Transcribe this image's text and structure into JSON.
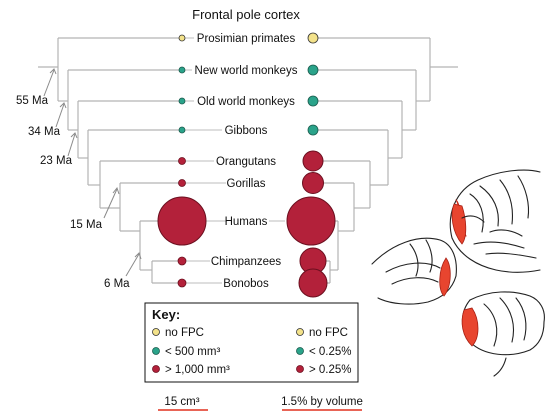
{
  "title": "Frontal pole cortex",
  "colors": {
    "fill": "#b3213a",
    "stroke": "#6b0f1f",
    "yellow": "#f3e28a",
    "teal": "#2aa38a",
    "underline": "#e0301f"
  },
  "species": [
    {
      "name": "Prosimian primates",
      "left_class": "no FPC",
      "right_class": "no FPC"
    },
    {
      "name": "New world monkeys",
      "left_class": "< 500 mm³",
      "right_class": "< 0.25%"
    },
    {
      "name": "Old world monkeys",
      "left_class": "< 500 mm³",
      "right_class": "< 0.25%"
    },
    {
      "name": "Gibbons",
      "left_class": "< 500 mm³",
      "right_class": "< 0.25%"
    },
    {
      "name": "Orangutans",
      "left_class": "> 1,000 mm³",
      "right_class": "> 0.25%"
    },
    {
      "name": "Gorillas",
      "left_class": "> 1,000 mm³",
      "right_class": "> 0.25%"
    },
    {
      "name": "Humans",
      "left_class": "> 1,000 mm³",
      "right_class": "> 0.25%"
    },
    {
      "name": "Chimpanzees",
      "left_class": "> 1,000 mm³",
      "right_class": "> 0.25%"
    },
    {
      "name": "Bonobos",
      "left_class": "> 1,000 mm³",
      "right_class": "> 0.25%"
    }
  ],
  "divergence_times": [
    "55 Ma",
    "34 Ma",
    "23 Ma",
    "15 Ma",
    "6 Ma"
  ],
  "key": {
    "title": "Key:",
    "left": [
      "no FPC",
      "< 500 mm³",
      "> 1,000 mm³"
    ],
    "right": [
      "no FPC",
      "< 0.25%",
      "> 0.25%"
    ]
  },
  "scale": {
    "left": "15 cm³",
    "right": "1.5% by volume"
  },
  "brain_illustration": "brain-lateral-and-medial-view"
}
